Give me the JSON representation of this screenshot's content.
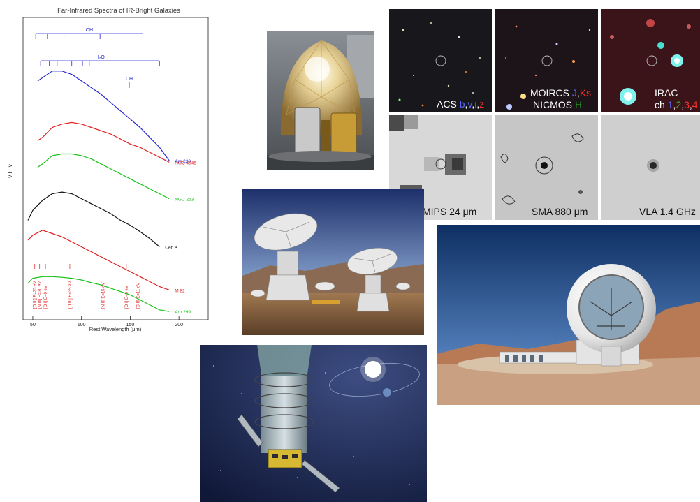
{
  "chart_data": {
    "type": "line",
    "title": "Far-Infrared Spectra of IR-Bright Galaxies",
    "xlabel": "Rest Wavelength (μm)",
    "ylabel": "ν F_ν",
    "xlim": [
      40,
      230
    ],
    "xticks": [
      "50",
      "100",
      "150",
      "200"
    ],
    "ylog": true,
    "grid": false,
    "series": [
      {
        "name": "Arp 220",
        "color": "#2828d0",
        "x": [
          55,
          60,
          70,
          80,
          90,
          100,
          110,
          120,
          130,
          140,
          150,
          160,
          170,
          180,
          190
        ],
        "y": [
          7.2,
          7.3,
          7.5,
          7.5,
          7.4,
          7.2,
          7.0,
          6.8,
          6.55,
          6.3,
          6.05,
          5.8,
          5.5,
          5.2,
          4.8
        ]
      },
      {
        "name": "NGC 4945",
        "color": "#e02020",
        "x": [
          55,
          60,
          70,
          80,
          90,
          100,
          110,
          120,
          130,
          140,
          150,
          160,
          170,
          180,
          190
        ],
        "y": [
          5.4,
          5.5,
          5.8,
          5.9,
          5.95,
          5.9,
          5.8,
          5.7,
          5.6,
          5.45,
          5.3,
          5.2,
          5.05,
          4.9,
          4.75
        ]
      },
      {
        "name": "NGC 253",
        "color": "#18c018",
        "x": [
          55,
          60,
          70,
          80,
          90,
          100,
          110,
          120,
          130,
          140,
          150,
          160,
          170,
          180,
          190
        ],
        "y": [
          4.6,
          4.7,
          4.95,
          5.0,
          5.0,
          4.95,
          4.85,
          4.7,
          4.55,
          4.4,
          4.25,
          4.1,
          3.95,
          3.8,
          3.65
        ]
      },
      {
        "name": "Cen A",
        "color": "#111111",
        "x": [
          45,
          50,
          60,
          70,
          80,
          90,
          100,
          110,
          120,
          130,
          140,
          150,
          158,
          170,
          180
        ],
        "y": [
          3.0,
          3.3,
          3.6,
          3.8,
          3.85,
          3.8,
          3.65,
          3.5,
          3.35,
          3.2,
          3.0,
          2.85,
          2.7,
          2.45,
          2.2
        ]
      },
      {
        "name": "M 82",
        "color": "#e02020",
        "x": [
          45,
          50,
          60,
          70,
          80,
          90,
          100,
          110,
          120,
          130,
          140,
          150,
          160,
          170,
          180,
          190
        ],
        "y": [
          2.4,
          2.55,
          2.7,
          2.6,
          2.5,
          2.35,
          2.2,
          2.05,
          1.9,
          1.75,
          1.6,
          1.45,
          1.3,
          1.15,
          1.0,
          0.9
        ]
      },
      {
        "name": "Arp 299",
        "color": "#18c018",
        "x": [
          45,
          50,
          60,
          70,
          80,
          90,
          100,
          110,
          120,
          130,
          140,
          150,
          160,
          170,
          180,
          190
        ],
        "y": [
          1.1,
          1.25,
          1.3,
          1.3,
          1.28,
          1.25,
          1.2,
          1.12,
          1.05,
          0.95,
          0.85,
          0.75,
          0.6,
          0.45,
          0.3,
          0.25
        ]
      }
    ],
    "molecular_bands": [
      {
        "label": "OH",
        "lines": [
          53,
          65,
          79,
          84,
          119,
          163
        ]
      },
      {
        "label": "H₂O",
        "lines": [
          58,
          67,
          75,
          90,
          101,
          108,
          180
        ]
      },
      {
        "label": "CH",
        "lines": [
          149
        ]
      }
    ],
    "fine_structure_lines": [
      {
        "label": "[O III]  E=35 eV",
        "x": 52
      },
      {
        "label": "[N III]  E=30 eV",
        "x": 57
      },
      {
        "label": "[O I]  E=0 eV",
        "x": 63
      },
      {
        "label": "[O III]  E=35 eV",
        "x": 88
      },
      {
        "label": "[N II]  E=15 eV",
        "x": 122
      },
      {
        "label": "[O I]  E=0 eV",
        "x": 146
      },
      {
        "label": "[C II]  E=11 eV",
        "x": 158
      }
    ]
  },
  "thumbnails": {
    "acs": {
      "label": "ACS",
      "bands": [
        "b",
        "v",
        "i",
        "z"
      ],
      "band_colors": [
        "#4a5cff",
        "#4a5cff",
        "#ff3030",
        "#ff3030"
      ]
    },
    "moircs": {
      "line1": "MOIRCS",
      "bands": [
        "J",
        "Ks"
      ],
      "band_colors": [
        "#4a5cff",
        "#ff3030"
      ],
      "line2": "NICMOS",
      "line2_band": "H",
      "line2_band_color": "#22cc22"
    },
    "irac": {
      "line1": "IRAC",
      "line2_prefix": "ch",
      "channels": [
        "1",
        "2",
        "3",
        "4"
      ],
      "channel_colors": [
        "#4a5cff",
        "#22cc22",
        "#ff3030",
        "#ff3030"
      ]
    },
    "mips": {
      "label": "MIPS 24 μm"
    },
    "sma": {
      "label": "SMA 880 μm"
    },
    "vla": {
      "label": "VLA 1.4 GHz"
    }
  }
}
